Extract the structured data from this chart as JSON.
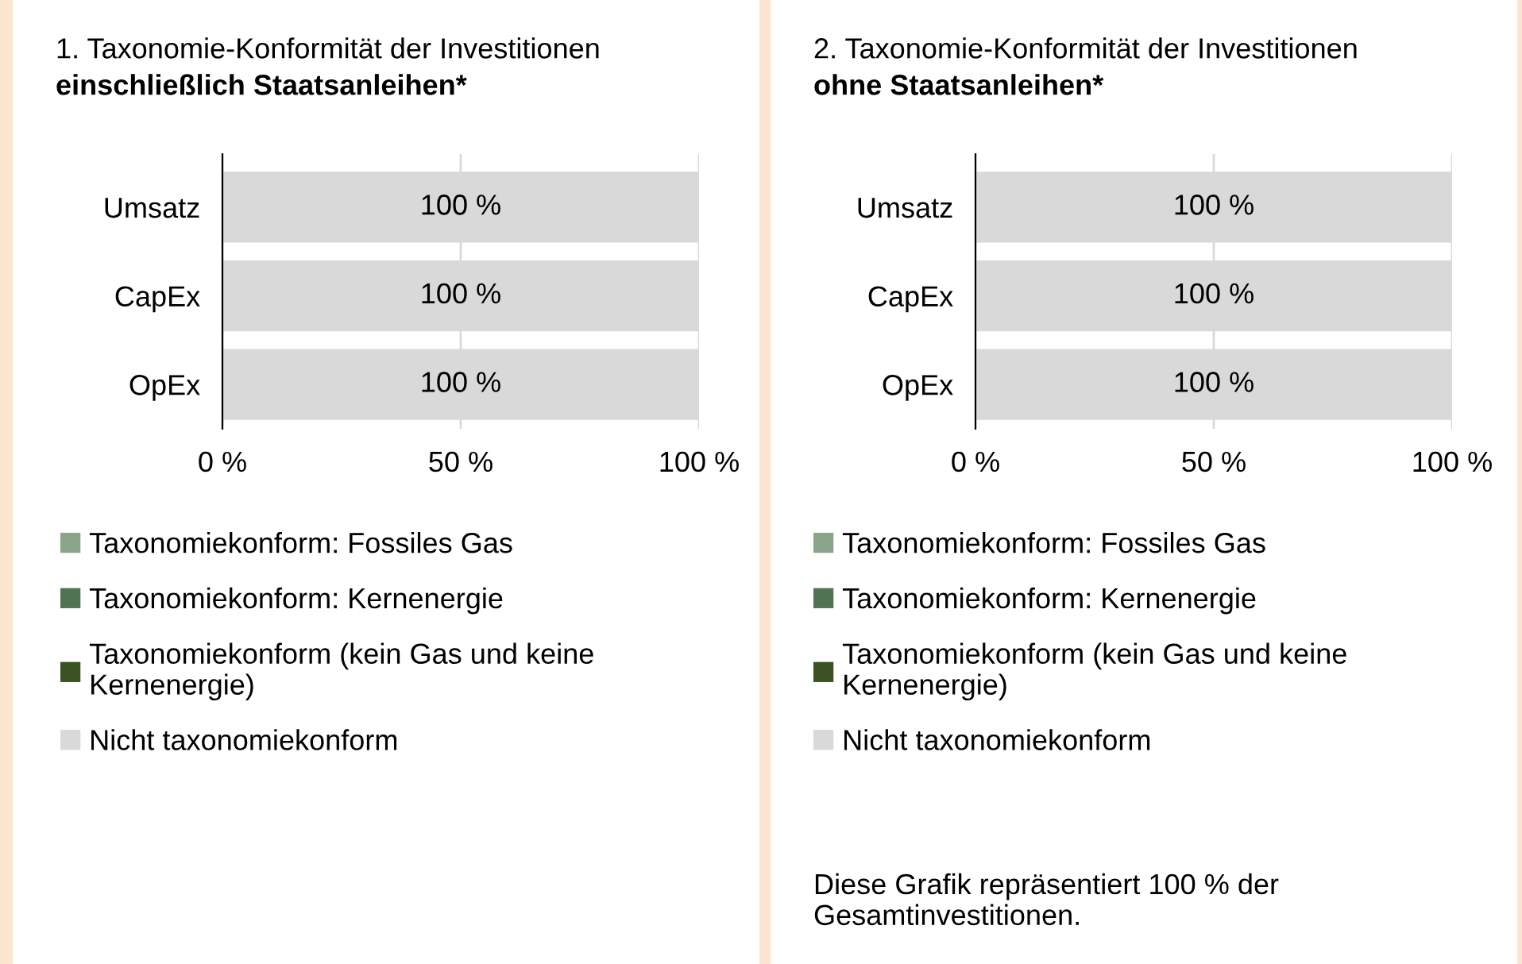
{
  "chart_data": [
    {
      "type": "bar",
      "orientation": "horizontal",
      "stacked": true,
      "title": "1. Taxonomie-Konformität der Investitionen",
      "subtitle": "einschließlich Staatsanleihen*",
      "categories": [
        "Umsatz",
        "CapEx",
        "OpEx"
      ],
      "series": [
        {
          "name": "Taxonomiekonform: Fossiles Gas",
          "color": "#8aa58a",
          "values": [
            0,
            0,
            0
          ]
        },
        {
          "name": "Taxonomiekonform: Kernenergie",
          "color": "#4f7353",
          "values": [
            0,
            0,
            0
          ]
        },
        {
          "name": "Taxonomiekonform (kein Gas und keine\nKernenergie)",
          "color": "#3b5323",
          "values": [
            0,
            0,
            0
          ]
        },
        {
          "name": "Nicht taxonomiekonform",
          "color": "#d9d9d9",
          "values": [
            100,
            100,
            100
          ],
          "value_labels": [
            "100 %",
            "100 %",
            "100 %"
          ]
        }
      ],
      "xlim": [
        0,
        100
      ],
      "xticks": [
        {
          "value": 0,
          "label": "0 %"
        },
        {
          "value": 50,
          "label": "50 %"
        },
        {
          "value": 100,
          "label": "100 %"
        }
      ],
      "grid": "x",
      "legend": "bottom"
    },
    {
      "type": "bar",
      "orientation": "horizontal",
      "stacked": true,
      "title": "2. Taxonomie-Konformität der Investitionen",
      "subtitle": "ohne Staatsanleihen*",
      "categories": [
        "Umsatz",
        "CapEx",
        "OpEx"
      ],
      "series": [
        {
          "name": "Taxonomiekonform: Fossiles Gas",
          "color": "#8aa58a",
          "values": [
            0,
            0,
            0
          ]
        },
        {
          "name": "Taxonomiekonform: Kernenergie",
          "color": "#4f7353",
          "values": [
            0,
            0,
            0
          ]
        },
        {
          "name": "Taxonomiekonform (kein Gas und keine\nKernenergie)",
          "color": "#3b5323",
          "values": [
            0,
            0,
            0
          ]
        },
        {
          "name": "Nicht taxonomiekonform",
          "color": "#d9d9d9",
          "values": [
            100,
            100,
            100
          ],
          "value_labels": [
            "100 %",
            "100 %",
            "100 %"
          ]
        }
      ],
      "xlim": [
        0,
        100
      ],
      "xticks": [
        {
          "value": 0,
          "label": "0 %"
        },
        {
          "value": 50,
          "label": "50 %"
        },
        {
          "value": 100,
          "label": "100 %"
        }
      ],
      "grid": "x",
      "legend": "bottom",
      "annotations": [
        "Diese Grafik repräsentiert 100 % der Gesamtinvestitionen."
      ]
    }
  ]
}
